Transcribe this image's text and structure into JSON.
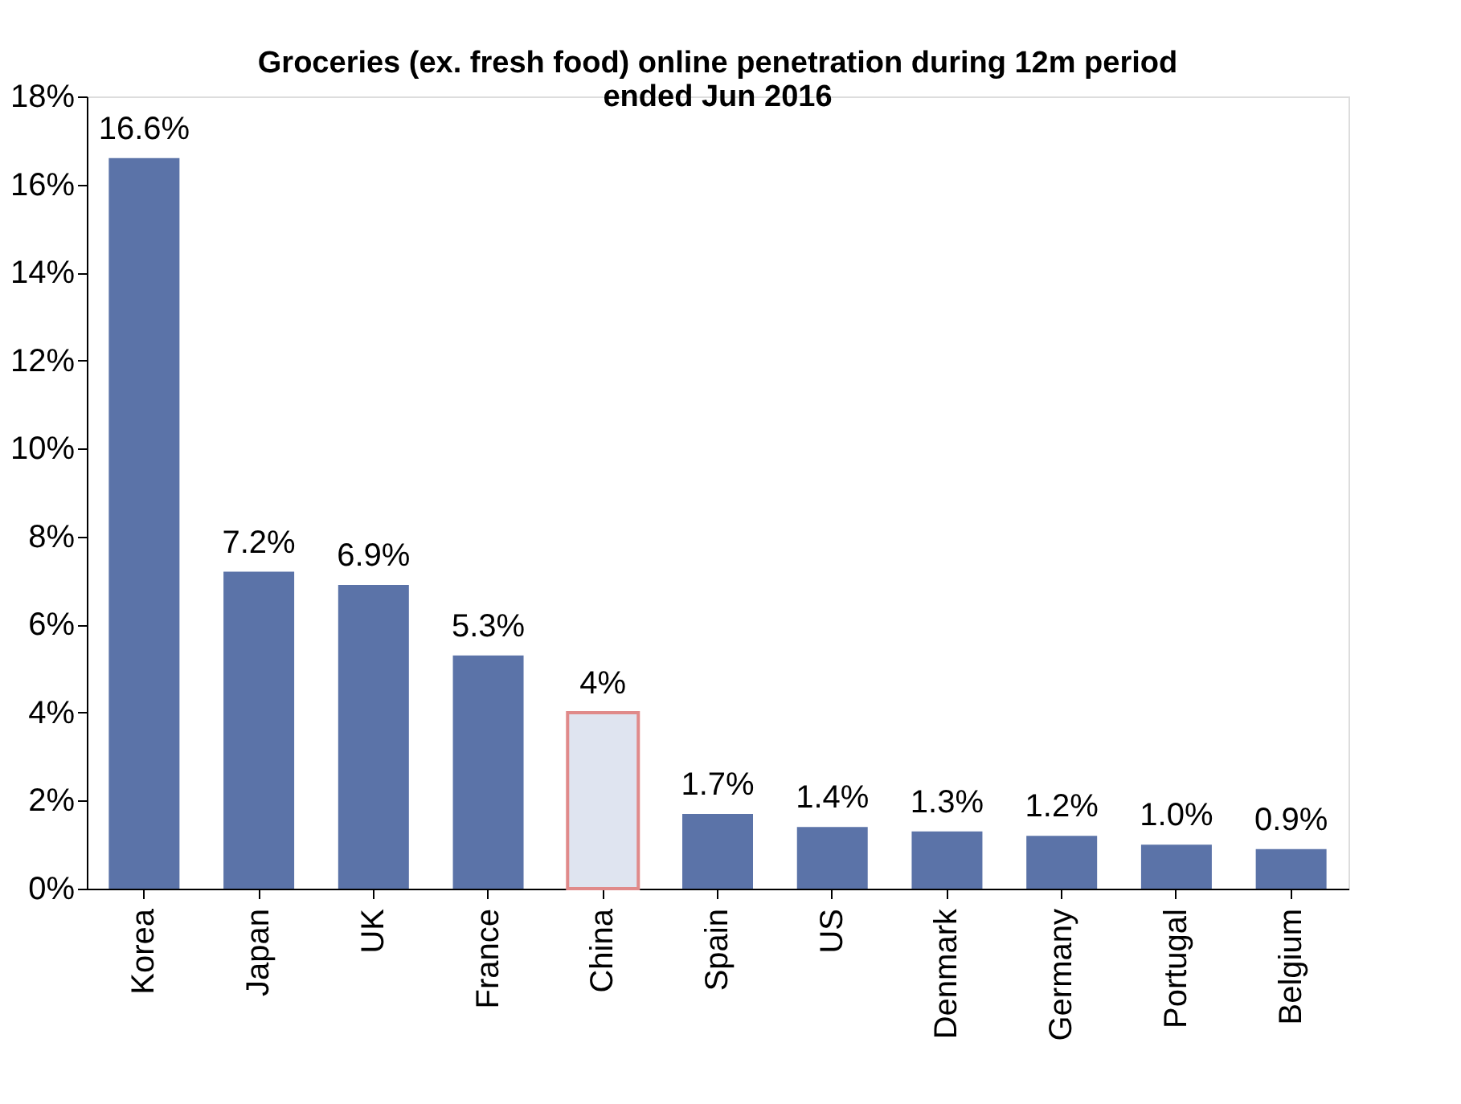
{
  "chart_data": {
    "type": "bar",
    "title": [
      "Groceries (ex. fresh food) online penetration during 12m period",
      "ended Jun 2016"
    ],
    "categories": [
      "Korea",
      "Japan",
      "UK",
      "France",
      "China",
      "Spain",
      "US",
      "Denmark",
      "Germany",
      "Portugal",
      "Belgium"
    ],
    "values": [
      16.6,
      7.2,
      6.9,
      5.3,
      4,
      1.7,
      1.4,
      1.3,
      1.2,
      1.0,
      0.9
    ],
    "value_labels": [
      "16.6%",
      "7.2%",
      "6.9%",
      "5.3%",
      "4%",
      "1.7%",
      "1.4%",
      "1.3%",
      "1.2%",
      "1.0%",
      "0.9%"
    ],
    "colors": [
      "#5b73a8",
      "#5b73a8",
      "#5b73a8",
      "#5b73a8",
      "#dfe4f0",
      "#5b73a8",
      "#5b73a8",
      "#5b73a8",
      "#5b73a8",
      "#5b73a8",
      "#5b73a8"
    ],
    "ylim": [
      0,
      18
    ],
    "yticks": [
      {
        "value": 0,
        "label": "0%"
      },
      {
        "value": 2,
        "label": "2%"
      },
      {
        "value": 4,
        "label": "4%"
      },
      {
        "value": 6,
        "label": "6%"
      },
      {
        "value": 8,
        "label": "8%"
      },
      {
        "value": 10,
        "label": "10%"
      },
      {
        "value": 12,
        "label": "12%"
      },
      {
        "value": 14,
        "label": "14%"
      },
      {
        "value": 16,
        "label": "16%"
      },
      {
        "value": 18,
        "label": "18%"
      }
    ],
    "grid": false
  }
}
